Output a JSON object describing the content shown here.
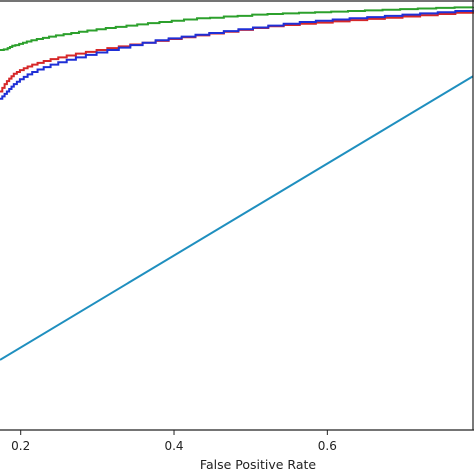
{
  "chart_data": {
    "type": "line",
    "xlabel": "False Positive Rate",
    "ylabel": "",
    "title": "",
    "xlim": [
      0.173,
      0.79
    ],
    "ylim": [
      0.305,
      1.01
    ],
    "xticks": [
      {
        "value": 0.2,
        "label": "0.2"
      },
      {
        "value": 0.4,
        "label": "0.4"
      },
      {
        "value": 0.6,
        "label": "0.6"
      }
    ],
    "grid": false,
    "legend": "none",
    "series": [
      {
        "color": "#2ca02c",
        "step": true,
        "x": [
          0.173,
          0.178,
          0.183,
          0.186,
          0.189,
          0.193,
          0.198,
          0.203,
          0.208,
          0.214,
          0.221,
          0.229,
          0.237,
          0.246,
          0.256,
          0.266,
          0.276,
          0.287,
          0.299,
          0.311,
          0.324,
          0.338,
          0.352,
          0.366,
          0.381,
          0.397,
          0.413,
          0.43,
          0.447,
          0.465,
          0.483,
          0.502,
          0.522,
          0.542,
          0.563,
          0.584,
          0.605,
          0.627,
          0.649,
          0.672,
          0.695,
          0.718,
          0.742,
          0.766,
          0.79
        ],
        "y": [
          0.928,
          0.929,
          0.931,
          0.933,
          0.935,
          0.936,
          0.938,
          0.94,
          0.942,
          0.944,
          0.946,
          0.948,
          0.95,
          0.952,
          0.954,
          0.956,
          0.958,
          0.96,
          0.962,
          0.964,
          0.966,
          0.968,
          0.97,
          0.972,
          0.974,
          0.976,
          0.978,
          0.98,
          0.981,
          0.983,
          0.984,
          0.986,
          0.987,
          0.988,
          0.989,
          0.99,
          0.991,
          0.992,
          0.993,
          0.994,
          0.995,
          0.996,
          0.997,
          0.998,
          0.999
        ]
      },
      {
        "color": "#d62728",
        "step": true,
        "x": [
          0.173,
          0.176,
          0.179,
          0.182,
          0.185,
          0.188,
          0.191,
          0.195,
          0.199,
          0.204,
          0.209,
          0.215,
          0.222,
          0.23,
          0.239,
          0.249,
          0.26,
          0.272,
          0.285,
          0.299,
          0.313,
          0.328,
          0.343,
          0.359,
          0.376,
          0.393,
          0.41,
          0.428,
          0.446,
          0.465,
          0.484,
          0.503,
          0.523,
          0.543,
          0.564,
          0.585,
          0.607,
          0.629,
          0.652,
          0.675,
          0.698,
          0.721,
          0.744,
          0.767,
          0.79
        ],
        "y": [
          0.86,
          0.866,
          0.872,
          0.877,
          0.881,
          0.885,
          0.889,
          0.892,
          0.895,
          0.898,
          0.901,
          0.904,
          0.907,
          0.91,
          0.913,
          0.916,
          0.919,
          0.922,
          0.925,
          0.928,
          0.931,
          0.934,
          0.937,
          0.94,
          0.943,
          0.946,
          0.949,
          0.952,
          0.955,
          0.958,
          0.961,
          0.964,
          0.967,
          0.969,
          0.971,
          0.973,
          0.975,
          0.977,
          0.979,
          0.981,
          0.983,
          0.985,
          0.987,
          0.989,
          0.991
        ]
      },
      {
        "color": "#1f2fd6",
        "step": true,
        "x": [
          0.173,
          0.176,
          0.179,
          0.182,
          0.185,
          0.188,
          0.191,
          0.195,
          0.199,
          0.204,
          0.209,
          0.215,
          0.222,
          0.23,
          0.239,
          0.249,
          0.26,
          0.272,
          0.285,
          0.299,
          0.313,
          0.328,
          0.343,
          0.359,
          0.376,
          0.393,
          0.41,
          0.428,
          0.446,
          0.465,
          0.484,
          0.503,
          0.523,
          0.543,
          0.564,
          0.585,
          0.607,
          0.629,
          0.652,
          0.675,
          0.698,
          0.721,
          0.744,
          0.767,
          0.79
        ],
        "y": [
          0.848,
          0.852,
          0.856,
          0.86,
          0.864,
          0.868,
          0.872,
          0.876,
          0.88,
          0.884,
          0.888,
          0.892,
          0.896,
          0.9,
          0.904,
          0.908,
          0.912,
          0.916,
          0.92,
          0.924,
          0.928,
          0.932,
          0.936,
          0.94,
          0.944,
          0.947,
          0.95,
          0.953,
          0.956,
          0.959,
          0.962,
          0.965,
          0.968,
          0.971,
          0.974,
          0.976,
          0.978,
          0.98,
          0.982,
          0.984,
          0.986,
          0.988,
          0.99,
          0.992,
          0.994
        ]
      },
      {
        "color": "#1f8fbf",
        "step": false,
        "x": [
          0.173,
          0.79
        ],
        "y": [
          0.42,
          0.885
        ]
      }
    ]
  }
}
